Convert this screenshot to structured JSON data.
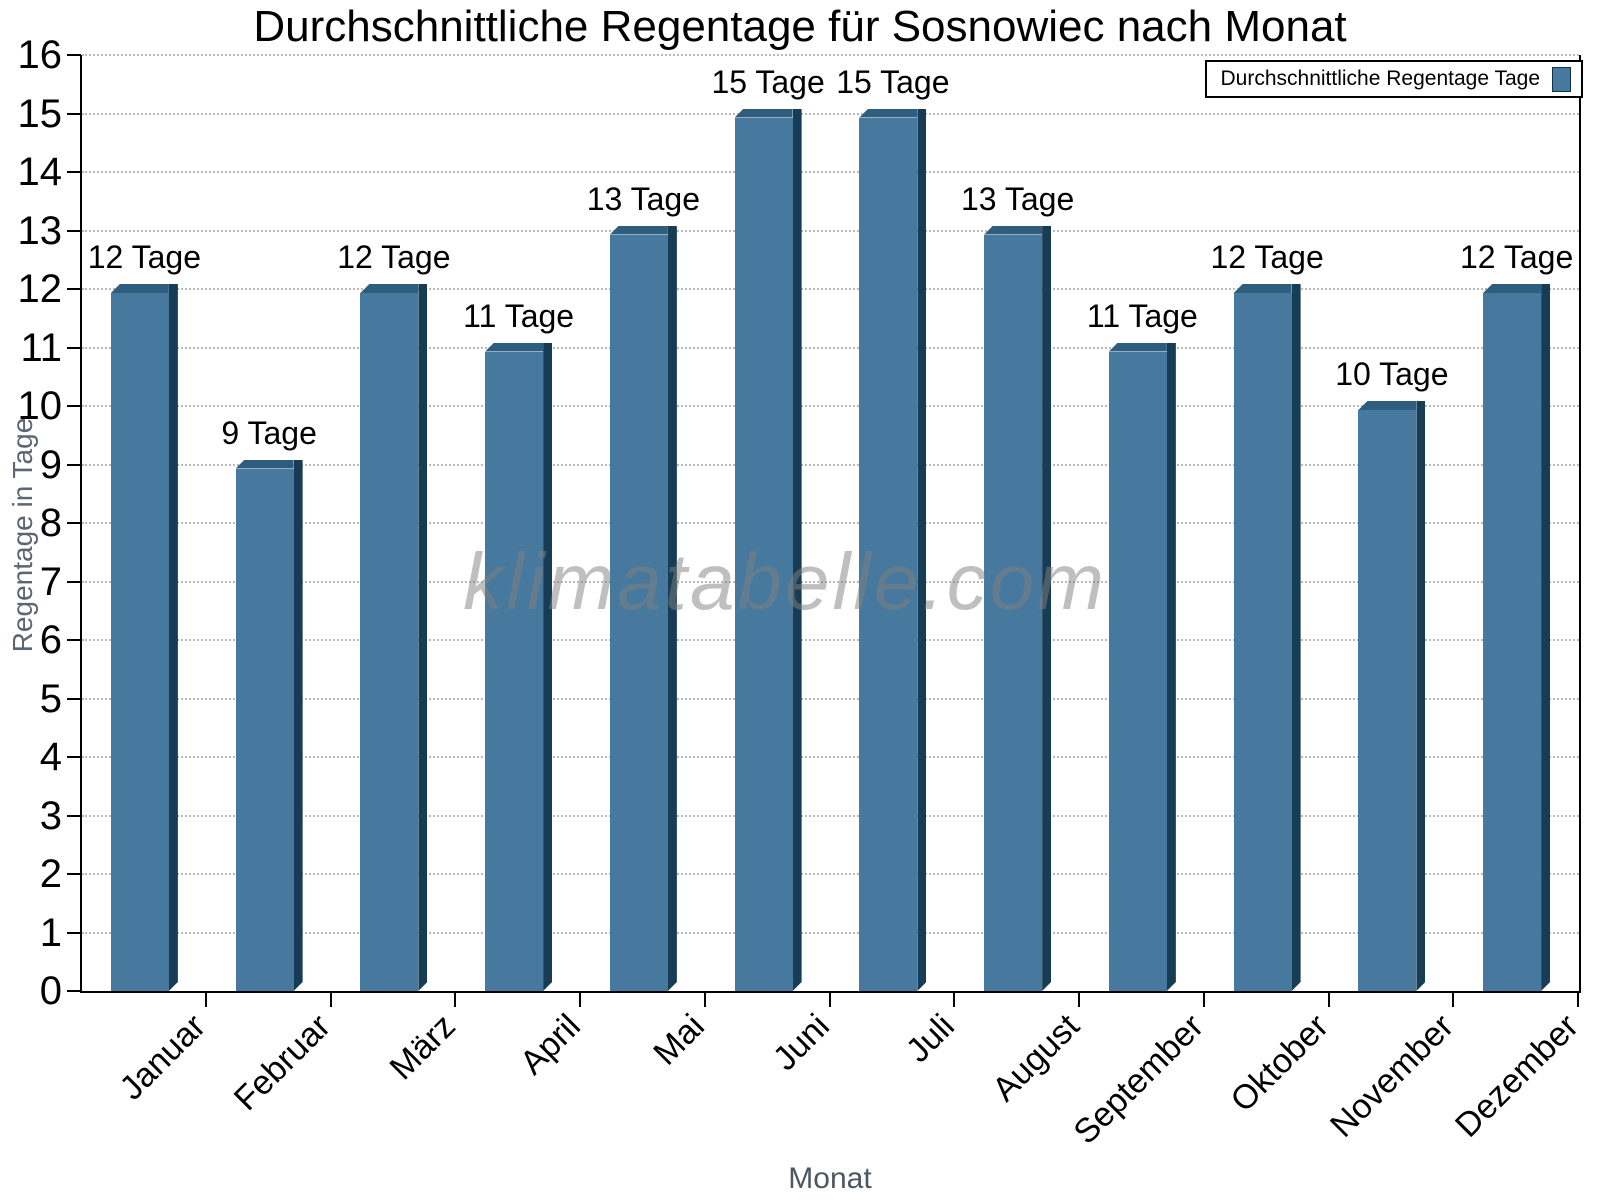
{
  "chart_data": {
    "type": "bar",
    "title": "Durchschnittliche Regentage für Sosnowiec nach Monat",
    "categories": [
      "Januar",
      "Februar",
      "März",
      "April",
      "Mai",
      "Juni",
      "Juli",
      "August",
      "September",
      "Oktober",
      "November",
      "Dezember"
    ],
    "values": [
      12,
      9,
      12,
      11,
      13,
      15,
      15,
      13,
      11,
      12,
      10,
      12
    ],
    "bar_labels": [
      "12 Tage",
      "9 Tage",
      "12 Tage",
      "11 Tage",
      "13 Tage",
      "15 Tage",
      "15 Tage",
      "13 Tage",
      "11 Tage",
      "12 Tage",
      "10 Tage",
      "12 Tage"
    ],
    "xlabel": "Monat",
    "ylabel": "Regentage in Tage",
    "ylim": [
      0,
      16
    ],
    "ytick_interval": 1,
    "ytick_labels": [
      "0",
      "1",
      "2",
      "3",
      "4",
      "5",
      "6",
      "7",
      "8",
      "9",
      "10",
      "11",
      "12",
      "13",
      "14",
      "15",
      "16"
    ],
    "grid": "horizontal-dotted",
    "legend": {
      "label": "Durchschnittliche Regentage Tage",
      "position": "top-right"
    },
    "watermark": "klimatabelle.com",
    "colors": {
      "bar_front": "#46799d",
      "bar_top": "#2e5d7d",
      "bar_side": "#173c55",
      "grid": "#b8b8b8",
      "axis": "#000000",
      "axis_title": "#5b6672",
      "watermark": "#808080"
    }
  }
}
